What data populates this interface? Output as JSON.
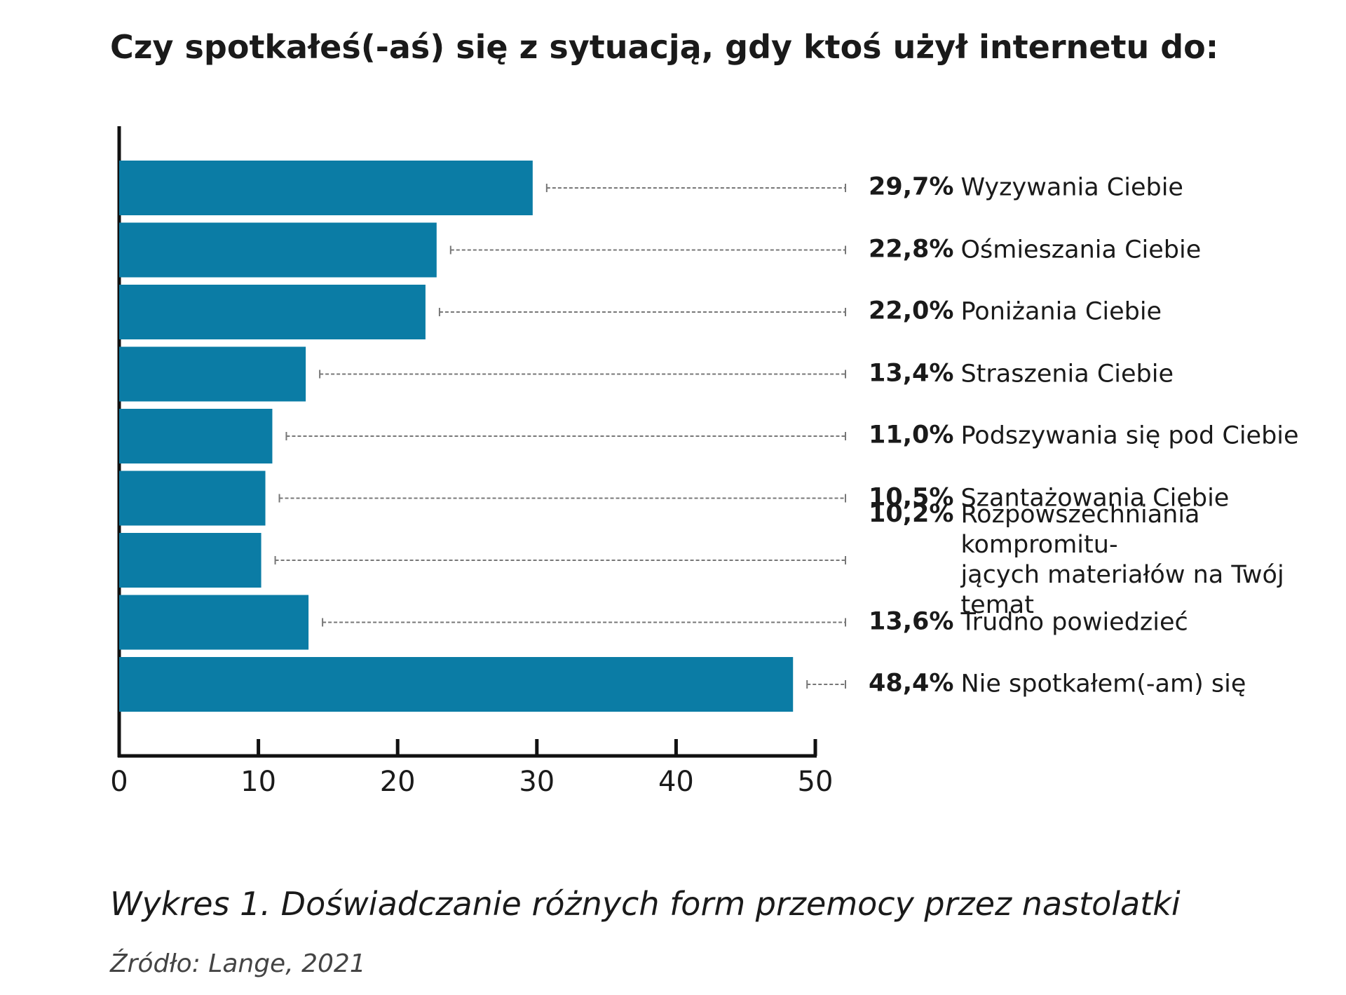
{
  "chart_data": {
    "type": "barh",
    "title": "Czy spotkałeś(-aś) się z sytuacją, gdy ktoś użył internetu do:",
    "categories": [
      "Wyzywania Ciebie",
      "Ośmieszania Ciebie",
      "Poniżania Ciebie",
      "Straszenia Ciebie",
      "Podszywania się pod Ciebie",
      "Szantażowania Ciebie",
      "Rozpowszechniania kompromitu-\njących materiałów na Twój temat",
      "Trudno powiedzieć",
      "Nie spotkałem(-am) się"
    ],
    "values": [
      29.7,
      22.8,
      22.0,
      13.4,
      11.0,
      10.5,
      10.2,
      13.6,
      48.4
    ],
    "value_labels": [
      "29,7%",
      "22,8%",
      "22,0%",
      "13,4%",
      "11,0%",
      "10,5%",
      "10,2%",
      "13,6%",
      "48,4%"
    ],
    "color": "#0b7ca5",
    "xlim": [
      0,
      50
    ],
    "xticks": [
      0,
      10,
      20,
      30,
      40,
      50
    ],
    "caption": "Wykres 1. Doświadczanie różnych form przemocy przez nastolatki",
    "source": "Źródło: Lange, 2021"
  }
}
